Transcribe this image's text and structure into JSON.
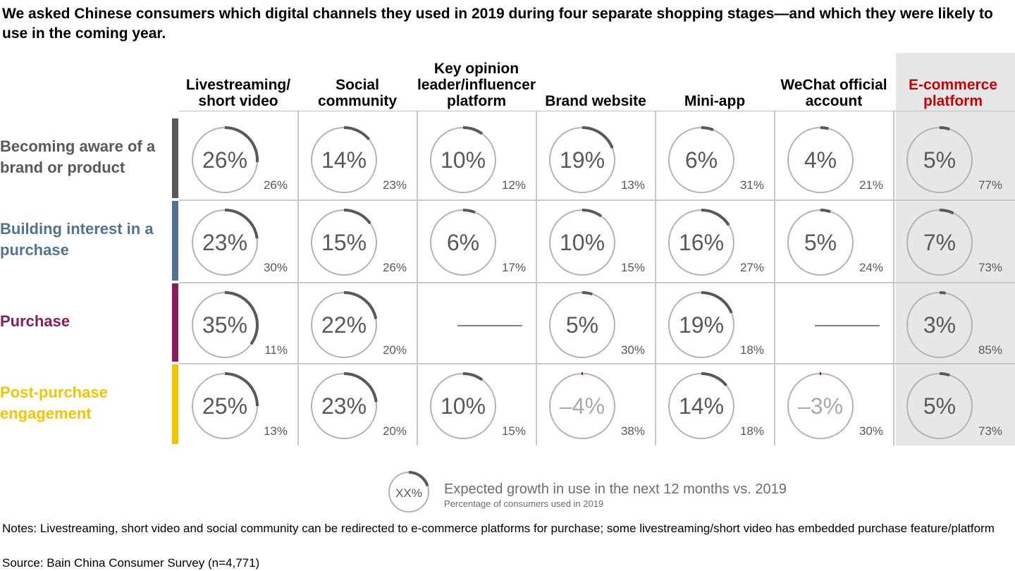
{
  "title": "We asked Chinese consumers which digital channels they used in 2019 during four separate shopping stages—and which they were likely to use in the coming year.",
  "colors": {
    "ring": "#b3b3b3",
    "arc_positive": "#58595b",
    "arc_negative": "#cc0000",
    "value_text": "#58595b",
    "value_text_negative": "#a7a9ac",
    "ecommerce_header": "#cc0000",
    "ecommerce_bg": "#e6e7e8"
  },
  "chart_data": {
    "type": "table",
    "columns": [
      "Livestreaming/ short video",
      "Social community",
      "Key opinion leader/influencer platform",
      "Brand website",
      "Mini-app",
      "WeChat official account",
      "E-commerce platform"
    ],
    "rows": [
      {
        "label": "Becoming aware of a brand or product",
        "color": "#595959",
        "growth": [
          "26%",
          "14%",
          "10%",
          "19%",
          "6%",
          "4%",
          "5%"
        ],
        "growth_values": [
          26,
          14,
          10,
          19,
          6,
          4,
          5
        ],
        "used_2019": [
          "26%",
          "23%",
          "12%",
          "13%",
          "31%",
          "21%",
          "77%"
        ]
      },
      {
        "label": "Building interest in a purchase",
        "color": "#4f7390",
        "growth": [
          "23%",
          "15%",
          "6%",
          "10%",
          "16%",
          "5%",
          "7%"
        ],
        "growth_values": [
          23,
          15,
          6,
          10,
          16,
          5,
          7
        ],
        "used_2019": [
          "30%",
          "26%",
          "17%",
          "15%",
          "27%",
          "24%",
          "73%"
        ]
      },
      {
        "label": "Purchase",
        "color": "#8a1c5b",
        "growth": [
          "35%",
          "22%",
          null,
          "5%",
          "19%",
          null,
          "3%"
        ],
        "growth_values": [
          35,
          22,
          null,
          5,
          19,
          null,
          3
        ],
        "used_2019": [
          "11%",
          "20%",
          null,
          "30%",
          "18%",
          null,
          "85%"
        ]
      },
      {
        "label": "Post-purchase engagement",
        "color": "#f2c500",
        "growth": [
          "25%",
          "23%",
          "10%",
          "–4%",
          "14%",
          "–3%",
          "5%"
        ],
        "growth_values": [
          25,
          23,
          10,
          -4,
          14,
          -3,
          5
        ],
        "used_2019": [
          "13%",
          "20%",
          "15%",
          "38%",
          "18%",
          "30%",
          "73%"
        ]
      }
    ]
  },
  "legend": {
    "symbol_label": "XX%",
    "symbol_value": 20,
    "main": "Expected growth in use in the next 12 months vs. 2019",
    "sub": "Percentage of consumers used in 2019"
  },
  "notes": "Notes: Livestreaming, short video and social community can be redirected to e-commerce platforms for purchase; some livestreaming/short video has embedded purchase feature/platform",
  "source": "Source: Bain China Consumer Survey (n=4,771)"
}
